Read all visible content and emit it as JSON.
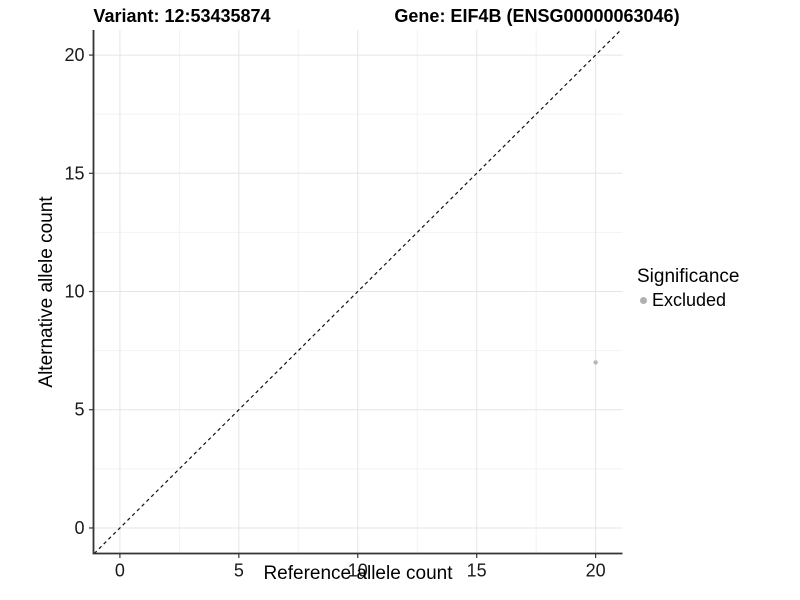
{
  "chart_data": {
    "type": "scatter",
    "title_left": "Variant: 12:53435874",
    "title_right": "Gene: EIF4B (ENSG00000063046)",
    "xlabel": "Reference allele count",
    "ylabel": "Alternative allele count",
    "xlim": [
      -1.11,
      21.13
    ],
    "ylim": [
      -1.08,
      21.06
    ],
    "xticks": [
      0,
      5,
      10,
      15,
      20
    ],
    "yticks": [
      0,
      5,
      10,
      15,
      20
    ],
    "minor_xticks": [
      2.5,
      7.5,
      12.5,
      17.5
    ],
    "minor_yticks": [
      2.5,
      7.5,
      12.5,
      17.5
    ],
    "grid": "major and minor gridlines on white panel",
    "series": [
      {
        "name": "Excluded",
        "color": "#b8b8b8",
        "point_radius": 2.2,
        "points": [
          {
            "x": 20,
            "y": 7
          }
        ]
      }
    ],
    "reference_line": {
      "kind": "identity y=x",
      "slope": 1,
      "intercept": 0,
      "style": "dashed",
      "color": "#111111"
    },
    "legend": {
      "title": "Significance",
      "position": "right",
      "entries": [
        {
          "label": "Excluded",
          "color": "#b0b0b0"
        }
      ]
    }
  },
  "colors": {
    "background": "#ffffff",
    "grid_major": "#e5e5e5",
    "grid_minor": "#f2f2f2",
    "axis_line": "#333333",
    "tick_text": "#1a1a1a"
  }
}
